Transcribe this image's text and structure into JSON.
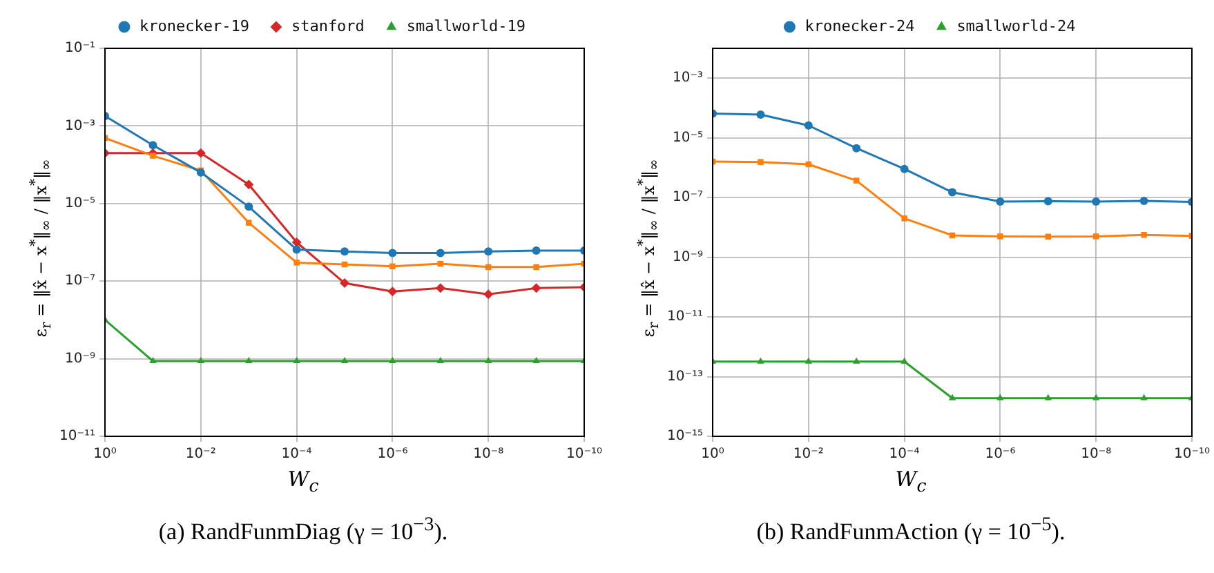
{
  "chart_data": [
    {
      "type": "line",
      "xlabel": "W$_{c}$",
      "ylabel": "ε$_{r}$ = ‖x̂ − x$^{*}$‖$_{∞}$ / ‖x$^{*}$‖$_{∞}$",
      "log": "xy",
      "grid": true,
      "legend": "top",
      "annotations": [
        "(a) RandFunmDiag (γ = 10$^{−3}$)."
      ],
      "x": [
        1,
        0.1,
        0.01,
        0.001,
        0.0001,
        1e-05,
        1e-06,
        1e-07,
        1e-08,
        1e-09,
        1e-10
      ],
      "xlim": [
        1,
        1e-10
      ],
      "xticks": [
        {
          "value": 1,
          "label": "10⁰"
        },
        {
          "value": 0.01,
          "label": "10⁻²"
        },
        {
          "value": 0.0001,
          "label": "10⁻⁴"
        },
        {
          "value": 1e-06,
          "label": "10⁻⁶"
        },
        {
          "value": 1e-08,
          "label": "10⁻⁸"
        },
        {
          "value": 1e-10,
          "label": "10⁻¹⁰"
        }
      ],
      "ylim": [
        1e-11,
        0.1
      ],
      "yticks": [
        {
          "value": 1e-11,
          "label": "10⁻¹¹"
        },
        {
          "value": 1e-09,
          "label": "10⁻⁹"
        },
        {
          "value": 1e-07,
          "label": "10⁻⁷"
        },
        {
          "value": 1e-05,
          "label": "10⁻⁵"
        },
        {
          "value": 0.001,
          "label": "10⁻³"
        },
        {
          "value": 0.1,
          "label": "10⁻¹"
        }
      ],
      "series": [
        {
          "name": "kronecker-19",
          "color": "#1f77b4",
          "marker": "circle",
          "values": [
            0.0018,
            0.00032,
            6.3e-05,
            8.3e-06,
            6.5e-07,
            5.8e-07,
            5.3e-07,
            5.3e-07,
            5.8e-07,
            6.1e-07,
            6.1e-07
          ]
        },
        {
          "color": "#ff7f0e",
          "marker": "square",
          "values": [
            0.00049,
            0.00017,
            7.1e-05,
            3.2e-06,
            3e-07,
            2.7e-07,
            2.4e-07,
            2.8e-07,
            2.3e-07,
            2.3e-07,
            2.8e-07
          ]
        },
        {
          "name": "stanford",
          "color": "#d62728",
          "marker": "diamond",
          "values": [
            0.0002,
            0.0002,
            0.0002,
            3.1e-05,
            1e-06,
            8.9e-08,
            5.4e-08,
            6.6e-08,
            4.6e-08,
            6.6e-08,
            7e-08
          ]
        },
        {
          "name": "smallworld-19",
          "color": "#2ca02c",
          "marker": "triangle",
          "values": [
            1e-08,
            8.7e-10,
            8.7e-10,
            8.7e-10,
            8.7e-10,
            8.7e-10,
            8.7e-10,
            8.7e-10,
            8.7e-10,
            8.7e-10,
            8.7e-10
          ]
        }
      ]
    },
    {
      "type": "line",
      "xlabel": "W$_{c}$",
      "ylabel": "ε$_{r}$ = ‖x̂ − x$^{*}$‖$_{∞}$ / ‖x$^{*}$‖$_{∞}$",
      "log": "xy",
      "grid": true,
      "legend": "top",
      "annotations": [
        "(b) RandFunmAction (γ = 10$^{−5}$)."
      ],
      "x": [
        1,
        0.1,
        0.01,
        0.001,
        0.0001,
        1e-05,
        1e-06,
        1e-07,
        1e-08,
        1e-09,
        1e-10
      ],
      "xlim": [
        1,
        1e-10
      ],
      "xticks": [
        {
          "value": 1,
          "label": "10⁰"
        },
        {
          "value": 0.01,
          "label": "10⁻²"
        },
        {
          "value": 0.0001,
          "label": "10⁻⁴"
        },
        {
          "value": 1e-06,
          "label": "10⁻⁶"
        },
        {
          "value": 1e-08,
          "label": "10⁻⁸"
        },
        {
          "value": 1e-10,
          "label": "10⁻¹⁰"
        }
      ],
      "ylim": [
        1e-15,
        0.01
      ],
      "yticks": [
        {
          "value": 1e-15,
          "label": "10⁻¹⁵"
        },
        {
          "value": 1e-13,
          "label": "10⁻¹³"
        },
        {
          "value": 1e-11,
          "label": "10⁻¹¹"
        },
        {
          "value": 1e-09,
          "label": "10⁻⁹"
        },
        {
          "value": 1e-07,
          "label": "10⁻⁷"
        },
        {
          "value": 1e-05,
          "label": "10⁻⁵"
        },
        {
          "value": 0.001,
          "label": "10⁻³"
        }
      ],
      "series": [
        {
          "name": "kronecker-24",
          "color": "#1f77b4",
          "marker": "circle",
          "values": [
            6.5e-05,
            6e-05,
            2.6e-05,
            4.5e-06,
            9.1e-07,
            1.5e-07,
            7.3e-08,
            7.5e-08,
            7.3e-08,
            7.7e-08,
            7.1e-08
          ]
        },
        {
          "name": "smallworld-24",
          "color": "#2ca02c",
          "marker": "triangle",
          "values": [
            3.2e-13,
            3.2e-13,
            3.2e-13,
            3.2e-13,
            3.2e-13,
            1.9e-14,
            1.9e-14,
            1.9e-14,
            1.9e-14,
            1.9e-14,
            1.9e-14
          ]
        },
        {
          "color": "#ff7f0e",
          "marker": "square",
          "values": [
            1.6e-06,
            1.55e-06,
            1.3e-06,
            3.7e-07,
            2e-08,
            5.4e-09,
            5e-09,
            4.9e-09,
            5e-09,
            5.6e-09,
            5.2e-09
          ]
        }
      ]
    }
  ]
}
